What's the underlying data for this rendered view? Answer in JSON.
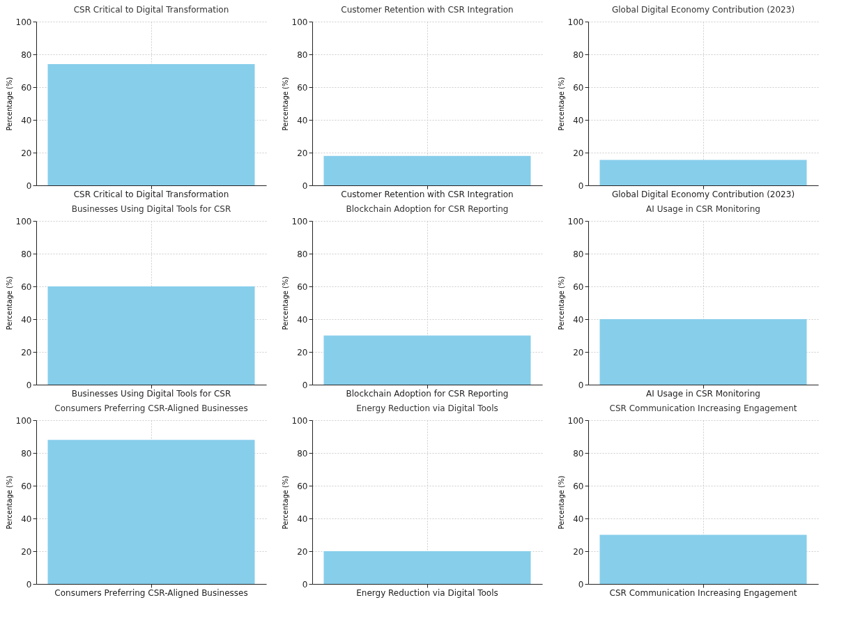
{
  "chart_data": [
    {
      "type": "bar",
      "title": "CSR Critical to Digital Transformation",
      "categories": [
        "CSR Critical to Digital Transformation"
      ],
      "values": [
        74
      ],
      "color": "#87ceeb",
      "ylabel": "Percentage (%)",
      "ylim": [
        0,
        100
      ],
      "yticks": [
        0,
        20,
        40,
        60,
        80,
        100
      ],
      "grid": true
    },
    {
      "type": "bar",
      "title": "Customer Retention with CSR Integration",
      "categories": [
        "Customer Retention with CSR Integration"
      ],
      "values": [
        18
      ],
      "color": "#87ceeb",
      "ylabel": "Percentage (%)",
      "ylim": [
        0,
        100
      ],
      "yticks": [
        0,
        20,
        40,
        60,
        80,
        100
      ],
      "grid": true
    },
    {
      "type": "bar",
      "title": "Global Digital Economy Contribution (2023)",
      "categories": [
        "Global Digital Economy Contribution (2023)"
      ],
      "values": [
        15.5
      ],
      "color": "#87ceeb",
      "ylabel": "Percentage (%)",
      "ylim": [
        0,
        100
      ],
      "yticks": [
        0,
        20,
        40,
        60,
        80,
        100
      ],
      "grid": true
    },
    {
      "type": "bar",
      "title": "Businesses Using Digital Tools for CSR",
      "categories": [
        "Businesses Using Digital Tools for CSR"
      ],
      "values": [
        60
      ],
      "color": "#87ceeb",
      "ylabel": "Percentage (%)",
      "ylim": [
        0,
        100
      ],
      "yticks": [
        0,
        20,
        40,
        60,
        80,
        100
      ],
      "grid": true
    },
    {
      "type": "bar",
      "title": "Blockchain Adoption for CSR Reporting",
      "categories": [
        "Blockchain Adoption for CSR Reporting"
      ],
      "values": [
        30
      ],
      "color": "#87ceeb",
      "ylabel": "Percentage (%)",
      "ylim": [
        0,
        100
      ],
      "yticks": [
        0,
        20,
        40,
        60,
        80,
        100
      ],
      "grid": true
    },
    {
      "type": "bar",
      "title": "AI Usage in CSR Monitoring",
      "categories": [
        "AI Usage in CSR Monitoring"
      ],
      "values": [
        40
      ],
      "color": "#87ceeb",
      "ylabel": "Percentage (%)",
      "ylim": [
        0,
        100
      ],
      "yticks": [
        0,
        20,
        40,
        60,
        80,
        100
      ],
      "grid": true
    },
    {
      "type": "bar",
      "title": "Consumers Preferring CSR-Aligned Businesses",
      "categories": [
        "Consumers Preferring CSR-Aligned Businesses"
      ],
      "values": [
        88
      ],
      "color": "#87ceeb",
      "ylabel": "Percentage (%)",
      "ylim": [
        0,
        100
      ],
      "yticks": [
        0,
        20,
        40,
        60,
        80,
        100
      ],
      "grid": true
    },
    {
      "type": "bar",
      "title": "Energy Reduction via Digital Tools",
      "categories": [
        "Energy Reduction via Digital Tools"
      ],
      "values": [
        20
      ],
      "color": "#87ceeb",
      "ylabel": "Percentage (%)",
      "ylim": [
        0,
        100
      ],
      "yticks": [
        0,
        20,
        40,
        60,
        80,
        100
      ],
      "grid": true
    },
    {
      "type": "bar",
      "title": "CSR Communication Increasing Engagement",
      "categories": [
        "CSR Communication Increasing Engagement"
      ],
      "values": [
        30
      ],
      "color": "#87ceeb",
      "ylabel": "Percentage (%)",
      "ylim": [
        0,
        100
      ],
      "yticks": [
        0,
        20,
        40,
        60,
        80,
        100
      ],
      "grid": true
    }
  ]
}
